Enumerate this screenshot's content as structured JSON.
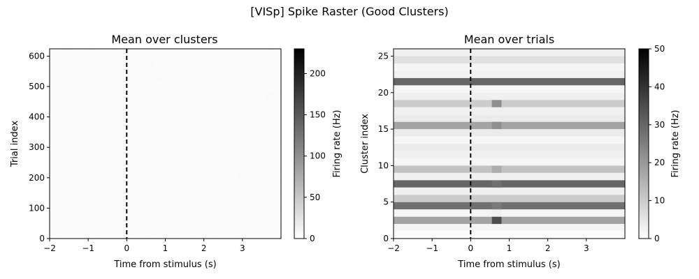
{
  "figure": {
    "suptitle": "[VISp] Spike Raster (Good Clusters)"
  },
  "chart_data": [
    {
      "type": "heatmap",
      "title": "Mean over clusters",
      "xlabel": "Time from stimulus (s)",
      "ylabel": "Trial index",
      "xlim": [
        -2,
        4
      ],
      "ylim": [
        0,
        624
      ],
      "xticks": [
        -2,
        -1,
        0,
        1,
        2,
        3
      ],
      "yticks": [
        0,
        100,
        200,
        300,
        400,
        500,
        600
      ],
      "stimulus_marker_x": 0,
      "colormap": "gray_r",
      "colorbar": {
        "label": "Firing rate (Hz)",
        "range": [
          0,
          230
        ],
        "ticks": [
          0,
          50,
          100,
          150,
          200
        ]
      },
      "description_values": {
        "typical_rate_hz": 5
      }
    },
    {
      "type": "heatmap",
      "title": "Mean over trials",
      "xlabel": "Time from stimulus (s)",
      "ylabel": "Cluster index",
      "xlim": [
        -2,
        4
      ],
      "ylim": [
        0,
        26
      ],
      "xticks": [
        -2,
        -1,
        0,
        1,
        2,
        3
      ],
      "yticks": [
        0,
        5,
        10,
        15,
        20,
        25
      ],
      "stimulus_marker_x": 0,
      "colormap": "gray_r",
      "colorbar": {
        "label": "Firing rate (Hz)",
        "range": [
          0,
          50
        ],
        "ticks": [
          0,
          10,
          20,
          30,
          40,
          50
        ]
      },
      "rows": [
        {
          "cluster": 0,
          "baseline_hz": 1,
          "response_hz": 1
        },
        {
          "cluster": 1,
          "baseline_hz": 2,
          "response_hz": 2
        },
        {
          "cluster": 2,
          "baseline_hz": 18,
          "response_hz": 35
        },
        {
          "cluster": 3,
          "baseline_hz": 2,
          "response_hz": 3
        },
        {
          "cluster": 4,
          "baseline_hz": 28,
          "response_hz": 26
        },
        {
          "cluster": 5,
          "baseline_hz": 10,
          "response_hz": 10
        },
        {
          "cluster": 6,
          "baseline_hz": 3,
          "response_hz": 3
        },
        {
          "cluster": 7,
          "baseline_hz": 30,
          "response_hz": 28
        },
        {
          "cluster": 8,
          "baseline_hz": 3,
          "response_hz": 3
        },
        {
          "cluster": 9,
          "baseline_hz": 12,
          "response_hz": 16
        },
        {
          "cluster": 10,
          "baseline_hz": 2,
          "response_hz": 2
        },
        {
          "cluster": 11,
          "baseline_hz": 3,
          "response_hz": 3
        },
        {
          "cluster": 12,
          "baseline_hz": 4,
          "response_hz": 4
        },
        {
          "cluster": 13,
          "baseline_hz": 2,
          "response_hz": 2
        },
        {
          "cluster": 14,
          "baseline_hz": 4,
          "response_hz": 4
        },
        {
          "cluster": 15,
          "baseline_hz": 18,
          "response_hz": 22
        },
        {
          "cluster": 16,
          "baseline_hz": 4,
          "response_hz": 4
        },
        {
          "cluster": 17,
          "baseline_hz": 3,
          "response_hz": 3
        },
        {
          "cluster": 18,
          "baseline_hz": 10,
          "response_hz": 22
        },
        {
          "cluster": 19,
          "baseline_hz": 3,
          "response_hz": 3
        },
        {
          "cluster": 20,
          "baseline_hz": 2,
          "response_hz": 2
        },
        {
          "cluster": 21,
          "baseline_hz": 30,
          "response_hz": 30
        },
        {
          "cluster": 22,
          "baseline_hz": 3,
          "response_hz": 3
        },
        {
          "cluster": 23,
          "baseline_hz": 2,
          "response_hz": 2
        },
        {
          "cluster": 24,
          "baseline_hz": 6,
          "response_hz": 6
        },
        {
          "cluster": 25,
          "baseline_hz": 3,
          "response_hz": 3
        }
      ],
      "response_window_s": [
        0.55,
        0.8
      ]
    }
  ]
}
